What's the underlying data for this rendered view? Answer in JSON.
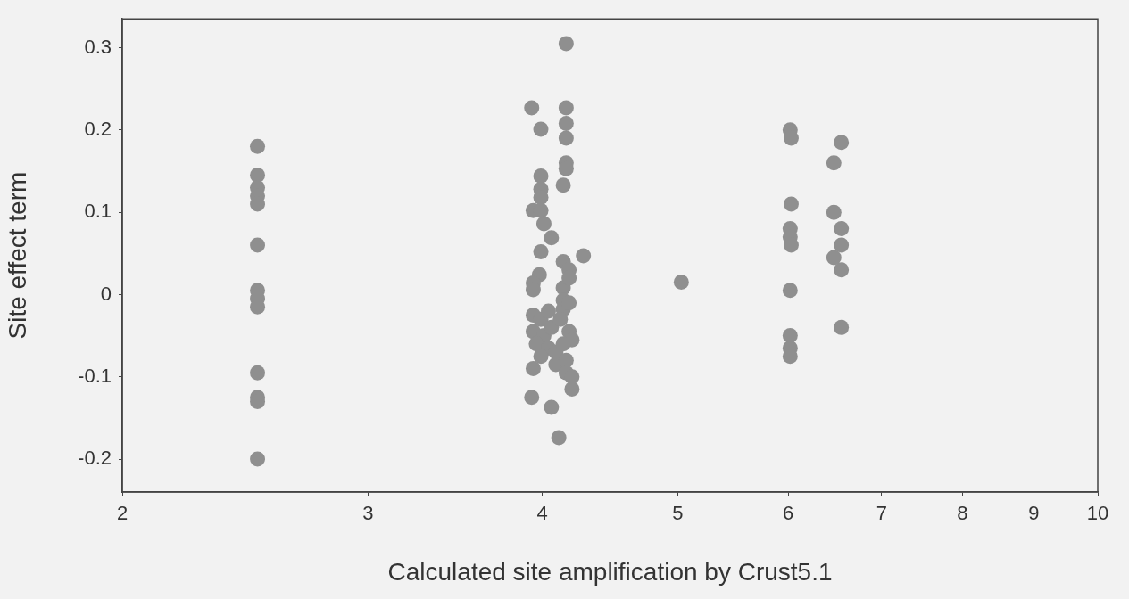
{
  "chart_data": {
    "type": "scatter",
    "xlabel": "Calculated site amplification by Crust5.1",
    "ylabel": "Site effect term",
    "log": "x",
    "grid": false,
    "legend": false,
    "marker": "circle",
    "xlim": [
      2,
      10
    ],
    "xticks": [
      2,
      3,
      4,
      5,
      6,
      7,
      8,
      9,
      10
    ],
    "ylim": [
      -0.24,
      0.335
    ],
    "yticks": [
      -0.2,
      -0.1,
      0,
      0.1,
      0.2,
      0.3
    ],
    "series": [
      {
        "color": "#8f8f8f",
        "x": [
          2.5,
          2.5,
          2.5,
          2.5,
          2.5,
          2.5,
          2.5,
          2.5,
          2.5,
          2.5,
          2.5,
          2.5,
          2.5,
          3.93,
          4.16,
          4.16,
          4.16,
          3.99,
          4.16,
          4.16,
          4.16,
          4.14,
          3.99,
          3.99,
          3.99,
          3.94,
          3.99,
          4.01,
          4.06,
          3.99,
          4.28,
          4.14,
          4.18,
          4.14,
          4.18,
          3.98,
          3.94,
          3.94,
          4.14,
          4.14,
          4.18,
          3.94,
          3.99,
          4.04,
          3.94,
          4.01,
          4.06,
          4.12,
          4.18,
          4.2,
          3.96,
          4.04,
          4.09,
          4.14,
          3.99,
          4.09,
          4.16,
          3.94,
          4.16,
          4.2,
          4.2,
          3.93,
          4.06,
          4.11,
          5.03,
          6.02,
          6.03,
          6.03,
          6.02,
          6.02,
          6.03,
          6.02,
          6.02,
          6.02,
          6.02,
          6.55,
          6.47,
          6.47,
          6.55,
          6.55,
          6.47,
          6.55,
          6.55
        ],
        "values": [
          0.18,
          0.145,
          0.13,
          0.12,
          0.11,
          0.06,
          0.005,
          -0.005,
          -0.015,
          -0.095,
          -0.125,
          -0.13,
          -0.2,
          0.227,
          0.305,
          0.227,
          0.208,
          0.201,
          0.19,
          0.16,
          0.153,
          0.133,
          0.144,
          0.128,
          0.118,
          0.102,
          0.102,
          0.086,
          0.069,
          0.052,
          0.047,
          0.04,
          0.03,
          0.008,
          0.02,
          0.024,
          0.014,
          0.006,
          -0.007,
          -0.018,
          -0.01,
          -0.025,
          -0.03,
          -0.02,
          -0.045,
          -0.05,
          -0.04,
          -0.03,
          -0.045,
          -0.055,
          -0.06,
          -0.065,
          -0.07,
          -0.06,
          -0.075,
          -0.085,
          -0.08,
          -0.09,
          -0.095,
          -0.1,
          -0.115,
          -0.125,
          -0.137,
          -0.174,
          0.015,
          0.2,
          0.19,
          0.11,
          0.08,
          0.07,
          0.06,
          0.005,
          -0.05,
          -0.065,
          -0.075,
          0.185,
          0.16,
          0.1,
          0.08,
          0.06,
          0.045,
          0.03,
          -0.04
        ]
      }
    ]
  }
}
